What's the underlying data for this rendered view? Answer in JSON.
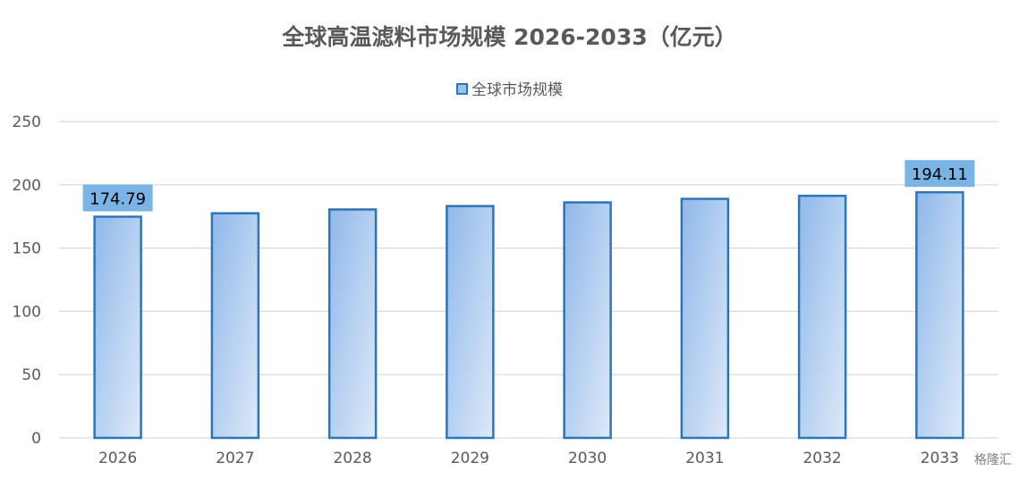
{
  "chart_data": {
    "type": "bar",
    "title": "全球高温滤料市场规模 2026-2033（亿元）",
    "categories": [
      "2026",
      "2027",
      "2028",
      "2029",
      "2030",
      "2031",
      "2032",
      "2033"
    ],
    "series": [
      {
        "name": "全球市场规模",
        "values": [
          174.79,
          177.5,
          180.5,
          183.2,
          186.1,
          188.9,
          191.3,
          194.11
        ]
      }
    ],
    "data_labels": [
      {
        "category": "2026",
        "text": "174.79"
      },
      {
        "category": "2033",
        "text": "194.11"
      }
    ],
    "xlabel": "",
    "ylabel": "",
    "ylim": [
      0,
      250
    ],
    "yticks": [
      0,
      50,
      100,
      150,
      200,
      250
    ],
    "grid": true,
    "legend_position": "top-center",
    "colors": {
      "bar_gradient_start": "#8fb8ea",
      "bar_gradient_end": "#dde9f8",
      "bar_border": "#2e75b6",
      "data_label_bg": "#7ab3e5",
      "grid": "#d9d9d9",
      "text": "#595959"
    }
  },
  "watermark": "格隆汇"
}
